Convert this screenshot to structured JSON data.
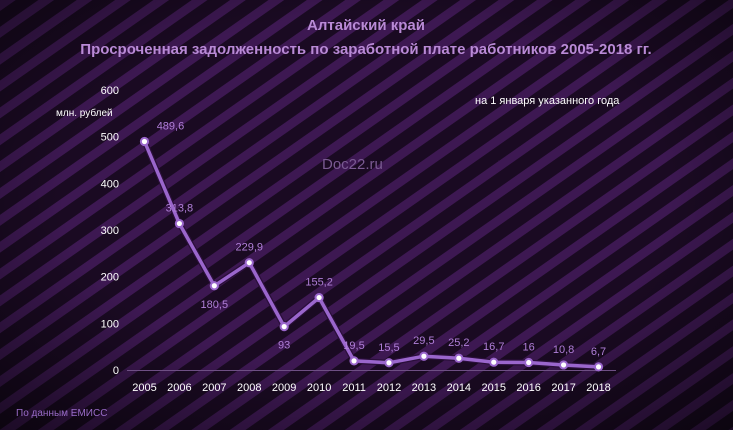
{
  "header": {
    "title": "Алтайский край",
    "subtitle": "Просроченная задолженность по заработной плате работников 2005-2018 гг."
  },
  "unit_label": "млн. рублей",
  "note": "на 1 января указанного года",
  "watermark": "Doc22.ru",
  "source": "По данным ЕМИСС",
  "colors": {
    "background": "#1a0a22",
    "stripe": "#3d1852",
    "line": "#9a66cc",
    "label": "#b07fd8",
    "title": "#b98ad6"
  },
  "chart_data": {
    "type": "line",
    "categories": [
      "2005",
      "2006",
      "2007",
      "2008",
      "2009",
      "2010",
      "2011",
      "2012",
      "2013",
      "2014",
      "2015",
      "2016",
      "2017",
      "2018"
    ],
    "values": [
      489.6,
      313.8,
      180.5,
      229.9,
      93,
      155.2,
      19.5,
      15.5,
      29.5,
      25.2,
      16.7,
      16,
      10.8,
      6.7
    ],
    "value_labels": [
      "489,6",
      "313,8",
      "180,5",
      "229,9",
      "93",
      "155,2",
      "19,5",
      "15,5",
      "29,5",
      "25,2",
      "16,7",
      "16",
      "10,8",
      "6,7"
    ],
    "y_ticks": [
      "0",
      "100",
      "200",
      "300",
      "400",
      "500",
      "600"
    ],
    "ylim": [
      0,
      600
    ],
    "grid": false
  }
}
